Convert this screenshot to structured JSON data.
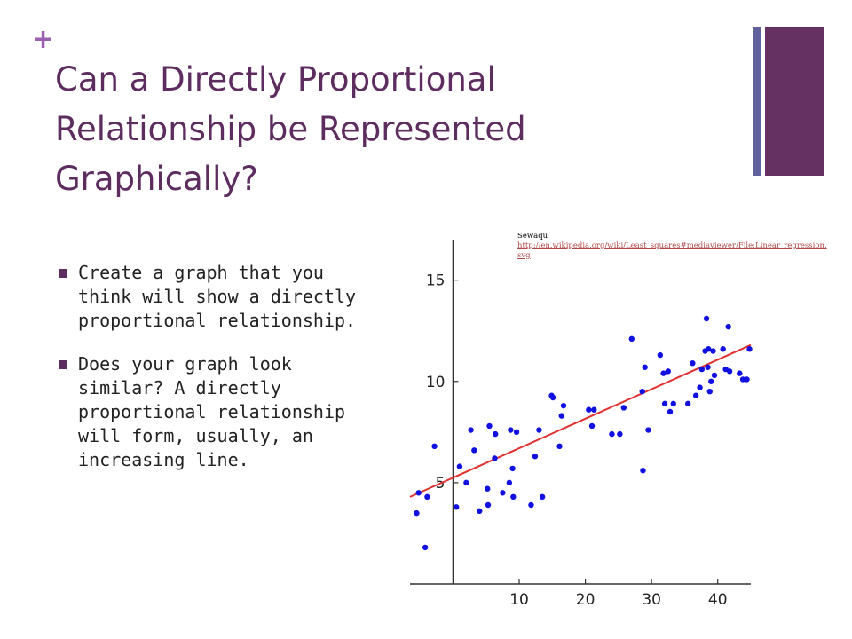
{
  "slide": {
    "plus": "+",
    "title": "Can a Directly Proportional Relationship be Represented Graphically?",
    "bullets": [
      "Create a graph that you think will show a directly proportional relationship.",
      "Does your graph look similar?  A directly proportional relationship will form, usually, an increasing line."
    ],
    "credit": {
      "author": "Sewaqu",
      "url": "http://en.wikipedia.org/wiki/Least_squares#mediaviewer/File:Linear_regression.svg"
    },
    "colors": {
      "title": "#5e2d60",
      "plus": "#9a5fb0",
      "bar_thin": "#61619d",
      "bar_wide": "#653163"
    }
  },
  "chart_data": {
    "type": "scatter",
    "title": "",
    "xlabel": "",
    "ylabel": "",
    "xlim": [
      -6.5,
      45
    ],
    "ylim": [
      0,
      17
    ],
    "x_ticks": [
      10,
      20,
      30,
      40
    ],
    "y_ticks": [
      5,
      10,
      15
    ],
    "grid": false,
    "point_color": "#1010e0",
    "line_color": "#e03030",
    "regression_line": {
      "x": [
        -6.5,
        45
      ],
      "y": [
        4.3,
        11.8
      ]
    },
    "points": [
      {
        "x": -5.5,
        "y": 3.5
      },
      {
        "x": -5.2,
        "y": 4.5
      },
      {
        "x": -4.2,
        "y": 1.8
      },
      {
        "x": -3.9,
        "y": 4.3
      },
      {
        "x": -2.8,
        "y": 6.8
      },
      {
        "x": 0.5,
        "y": 3.8
      },
      {
        "x": 1.0,
        "y": 5.8
      },
      {
        "x": 2.0,
        "y": 5.0
      },
      {
        "x": 2.7,
        "y": 7.6
      },
      {
        "x": 3.2,
        "y": 6.6
      },
      {
        "x": 4.0,
        "y": 3.6
      },
      {
        "x": 5.2,
        "y": 4.7
      },
      {
        "x": 5.3,
        "y": 3.9
      },
      {
        "x": 5.5,
        "y": 7.8
      },
      {
        "x": 6.3,
        "y": 6.2
      },
      {
        "x": 6.4,
        "y": 7.4
      },
      {
        "x": 7.5,
        "y": 4.5
      },
      {
        "x": 8.5,
        "y": 5.0
      },
      {
        "x": 8.7,
        "y": 7.6
      },
      {
        "x": 9.0,
        "y": 5.7
      },
      {
        "x": 9.1,
        "y": 4.3
      },
      {
        "x": 9.6,
        "y": 7.5
      },
      {
        "x": 11.8,
        "y": 3.9
      },
      {
        "x": 12.4,
        "y": 6.3
      },
      {
        "x": 13.0,
        "y": 7.6
      },
      {
        "x": 13.5,
        "y": 4.3
      },
      {
        "x": 14.9,
        "y": 9.3
      },
      {
        "x": 15.1,
        "y": 9.2
      },
      {
        "x": 16.1,
        "y": 6.8
      },
      {
        "x": 16.4,
        "y": 8.3
      },
      {
        "x": 16.7,
        "y": 8.8
      },
      {
        "x": 20.5,
        "y": 8.6
      },
      {
        "x": 21.0,
        "y": 7.8
      },
      {
        "x": 21.3,
        "y": 8.6
      },
      {
        "x": 24.0,
        "y": 7.4
      },
      {
        "x": 25.2,
        "y": 7.4
      },
      {
        "x": 25.8,
        "y": 8.7
      },
      {
        "x": 27.0,
        "y": 12.1
      },
      {
        "x": 28.6,
        "y": 9.5
      },
      {
        "x": 28.7,
        "y": 5.6
      },
      {
        "x": 29.0,
        "y": 10.7
      },
      {
        "x": 29.5,
        "y": 7.6
      },
      {
        "x": 31.3,
        "y": 11.3
      },
      {
        "x": 31.8,
        "y": 10.4
      },
      {
        "x": 32.0,
        "y": 8.9
      },
      {
        "x": 32.5,
        "y": 10.5
      },
      {
        "x": 32.8,
        "y": 8.5
      },
      {
        "x": 33.3,
        "y": 8.9
      },
      {
        "x": 35.5,
        "y": 8.9
      },
      {
        "x": 36.2,
        "y": 10.9
      },
      {
        "x": 36.7,
        "y": 9.3
      },
      {
        "x": 37.3,
        "y": 9.7
      },
      {
        "x": 37.6,
        "y": 10.6
      },
      {
        "x": 38.1,
        "y": 11.5
      },
      {
        "x": 38.3,
        "y": 13.1
      },
      {
        "x": 38.5,
        "y": 10.7
      },
      {
        "x": 38.6,
        "y": 11.6
      },
      {
        "x": 38.8,
        "y": 9.5
      },
      {
        "x": 39.0,
        "y": 10.0
      },
      {
        "x": 39.3,
        "y": 11.5
      },
      {
        "x": 39.5,
        "y": 10.3
      },
      {
        "x": 40.8,
        "y": 11.6
      },
      {
        "x": 41.2,
        "y": 10.6
      },
      {
        "x": 41.6,
        "y": 12.7
      },
      {
        "x": 41.8,
        "y": 10.5
      },
      {
        "x": 43.3,
        "y": 10.4
      },
      {
        "x": 43.8,
        "y": 10.1
      },
      {
        "x": 44.4,
        "y": 10.1
      },
      {
        "x": 44.8,
        "y": 11.6
      }
    ]
  }
}
